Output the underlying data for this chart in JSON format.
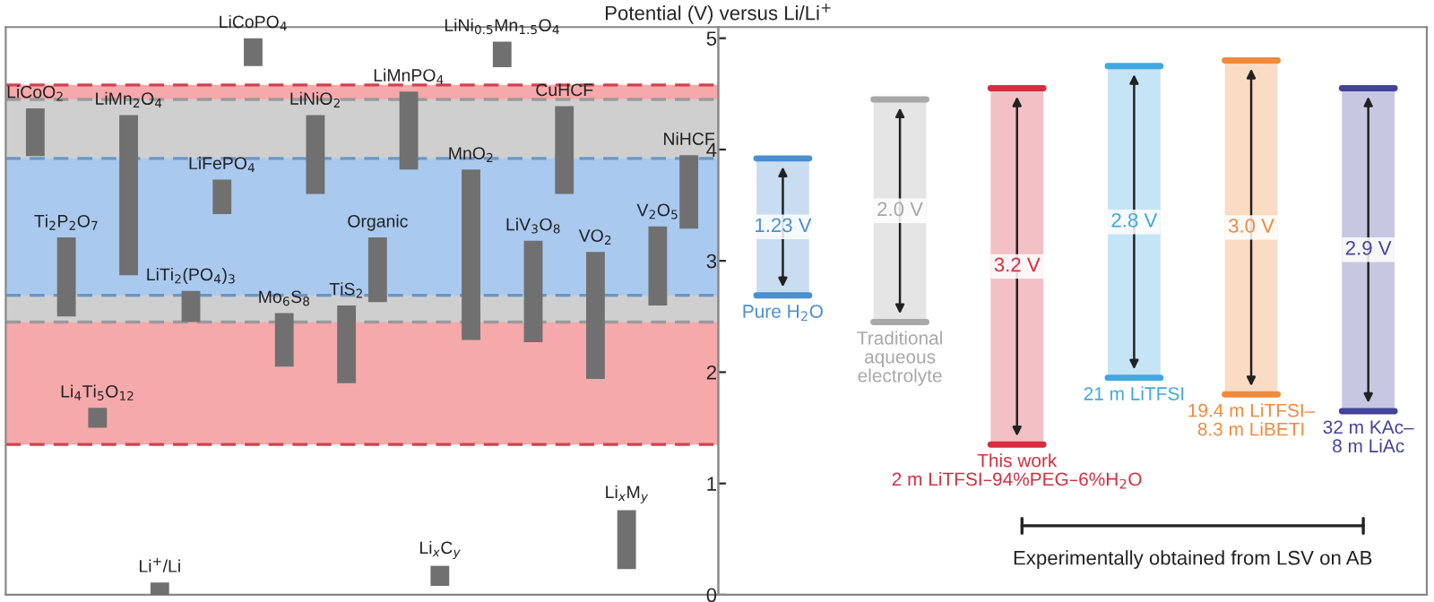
{
  "chart_data": [
    {
      "type": "bar",
      "categories": [
        "LiCoO$_{2}$",
        "Ti$_{2}$P$_{2}$O$_{7}$",
        "Li$_{4}$Ti$_{5}$O$_{12}$",
        "LiMn$_{2}$O$_{4}$",
        "Li$^{+}$/Li",
        "LiTi$_{2}$(PO$_{4}$)$_{3}$",
        "LiFePO$_{4}$",
        "LiCoPO$_{4}$",
        "Mo$_{6}$S$_{8}$",
        "LiNiO$_{2}$",
        "TiS$_{2}$",
        "Organic",
        "LiMnPO$_{4}$",
        "Li$_{x}$C$_{y}$",
        "MnO$_{2}$",
        "LiNi$_{0.5}$Mn$_{1.5}$O$_{4}$",
        "LiV$_{3}$O$_{8}$",
        "CuHCF",
        "VO$_{2}$",
        "Li$_{x}$M$_{y}$",
        "V$_{2}$O$_{5}$",
        "NiHCF"
      ],
      "base": [
        3.94,
        2.5,
        1.5,
        2.87,
        0,
        2.45,
        3.42,
        4.75,
        2.05,
        3.6,
        1.9,
        2.63,
        3.82,
        0.08,
        2.29,
        4.74,
        2.27,
        3.6,
        1.94,
        0.23,
        2.6,
        3.29
      ],
      "values": [
        0.43,
        0.71,
        0.18,
        1.44,
        0.11,
        0.28,
        0.31,
        0.25,
        0.48,
        0.71,
        0.7,
        0.58,
        0.7,
        0.18,
        1.53,
        0.23,
        0.91,
        0.79,
        1.14,
        0.53,
        0.71,
        0.66
      ],
      "color": "#707070",
      "ylim": [
        0,
        5.1
      ],
      "tick_labels": false,
      "bands": [
        {
          "axis": "y",
          "from": 1.35,
          "to": 4.58,
          "color": "#f6a9ab"
        },
        {
          "axis": "y",
          "from": 2.45,
          "to": 4.45,
          "color": "#cfcfcf"
        },
        {
          "axis": "y",
          "from": 2.69,
          "to": 3.92,
          "color": "#a9c9ef"
        }
      ],
      "ref_lines": [
        {
          "axis": "y",
          "value": 4.58,
          "color": "#d0434f",
          "line_style": "dashed"
        },
        {
          "axis": "y",
          "value": 1.35,
          "color": "#d0434f",
          "line_style": "dashed"
        },
        {
          "axis": "y",
          "value": 4.45,
          "color": "#9a9a9a",
          "line_style": "dashed"
        },
        {
          "axis": "y",
          "value": 2.45,
          "color": "#9a9a9a",
          "line_style": "dashed"
        },
        {
          "axis": "y",
          "value": 3.92,
          "color": "#6a97c4",
          "line_style": "dashed"
        },
        {
          "axis": "y",
          "value": 2.69,
          "color": "#6a97c4",
          "line_style": "dashed"
        }
      ]
    },
    {
      "type": "bar",
      "ylabel": "Potential (V) versus Li/Li$^{+}$",
      "categories": [
        "Pure H$_{2}$O",
        "Traditional\naqueous\nelectrolyte",
        "This work\n2 m LiTFSI–94%PEG–6%H$_{2}$O",
        "21 m LiTFSI",
        "19.4 m LiTFSI–\n8.3 m LiBETI",
        "32 m KAc–\n8 m LiAc"
      ],
      "base": [
        2.69,
        2.45,
        1.35,
        1.95,
        1.8,
        1.65
      ],
      "values": [
        1.23,
        2.0,
        3.2,
        2.8,
        3.0,
        2.9
      ],
      "value_labels": [
        "1.23 V",
        "2.0 V",
        "3.2 V",
        "2.8 V",
        "3.0 V",
        "2.9 V"
      ],
      "colors": [
        "#4a8fd0",
        "#a8a8a8",
        "#d32f3f",
        "#3fa8e0",
        "#f08a3c",
        "#44449a"
      ],
      "ylim": [
        0,
        5.1
      ],
      "yticks": [
        0,
        1,
        2,
        3,
        4,
        5
      ],
      "tick_labels": "y",
      "annotations": [
        "Experimentally obtained from LSV on AB"
      ]
    }
  ]
}
